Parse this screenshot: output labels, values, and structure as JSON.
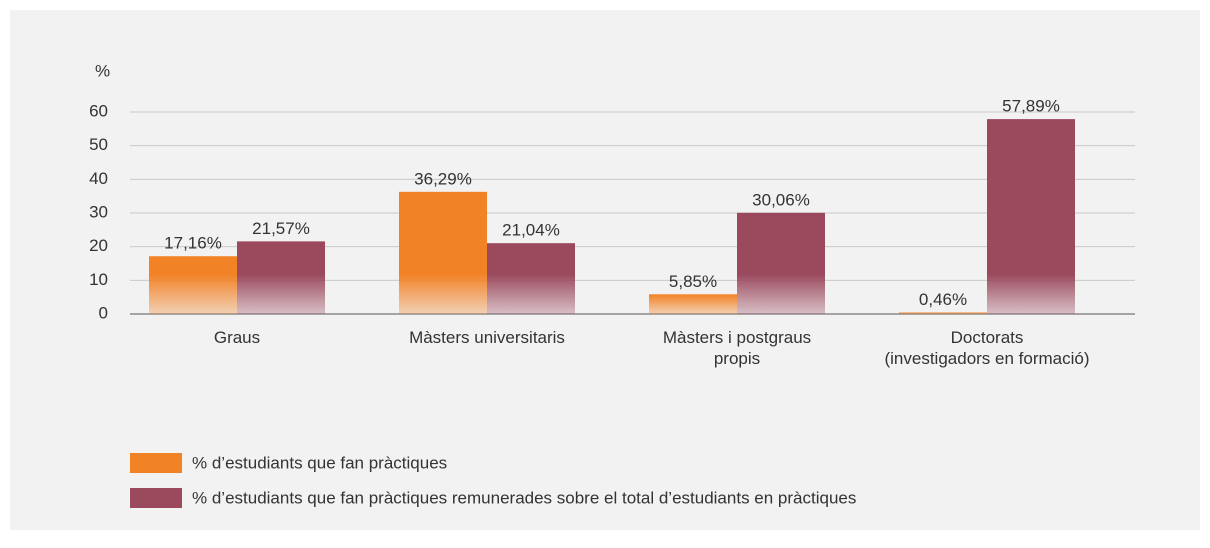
{
  "chart_data": {
    "type": "bar",
    "y_label": "%",
    "categories": [
      "Graus",
      "Màsters universitaris",
      "Màsters i postgraus\npropis",
      "Doctorats\n(investigadors en formació)"
    ],
    "series": [
      {
        "name": "% d’estudiants que fan pràctiques",
        "color": "#f28226",
        "values": [
          17.16,
          36.29,
          5.85,
          0.46
        ],
        "value_labels": [
          "17,16%",
          "36,29%",
          "5,85%",
          "0,46%"
        ]
      },
      {
        "name": "% d’estudiants que fan pràctiques remunerades sobre el total d’estudiants en pràctiques",
        "color": "#9b4a5e",
        "values": [
          21.57,
          21.04,
          30.06,
          57.89
        ],
        "value_labels": [
          "21,57%",
          "21,04%",
          "30,06%",
          "57,89%"
        ]
      }
    ],
    "ylim": [
      0,
      60
    ],
    "yticks": [
      0,
      10,
      20,
      30,
      40,
      50,
      60
    ],
    "grid": true
  }
}
